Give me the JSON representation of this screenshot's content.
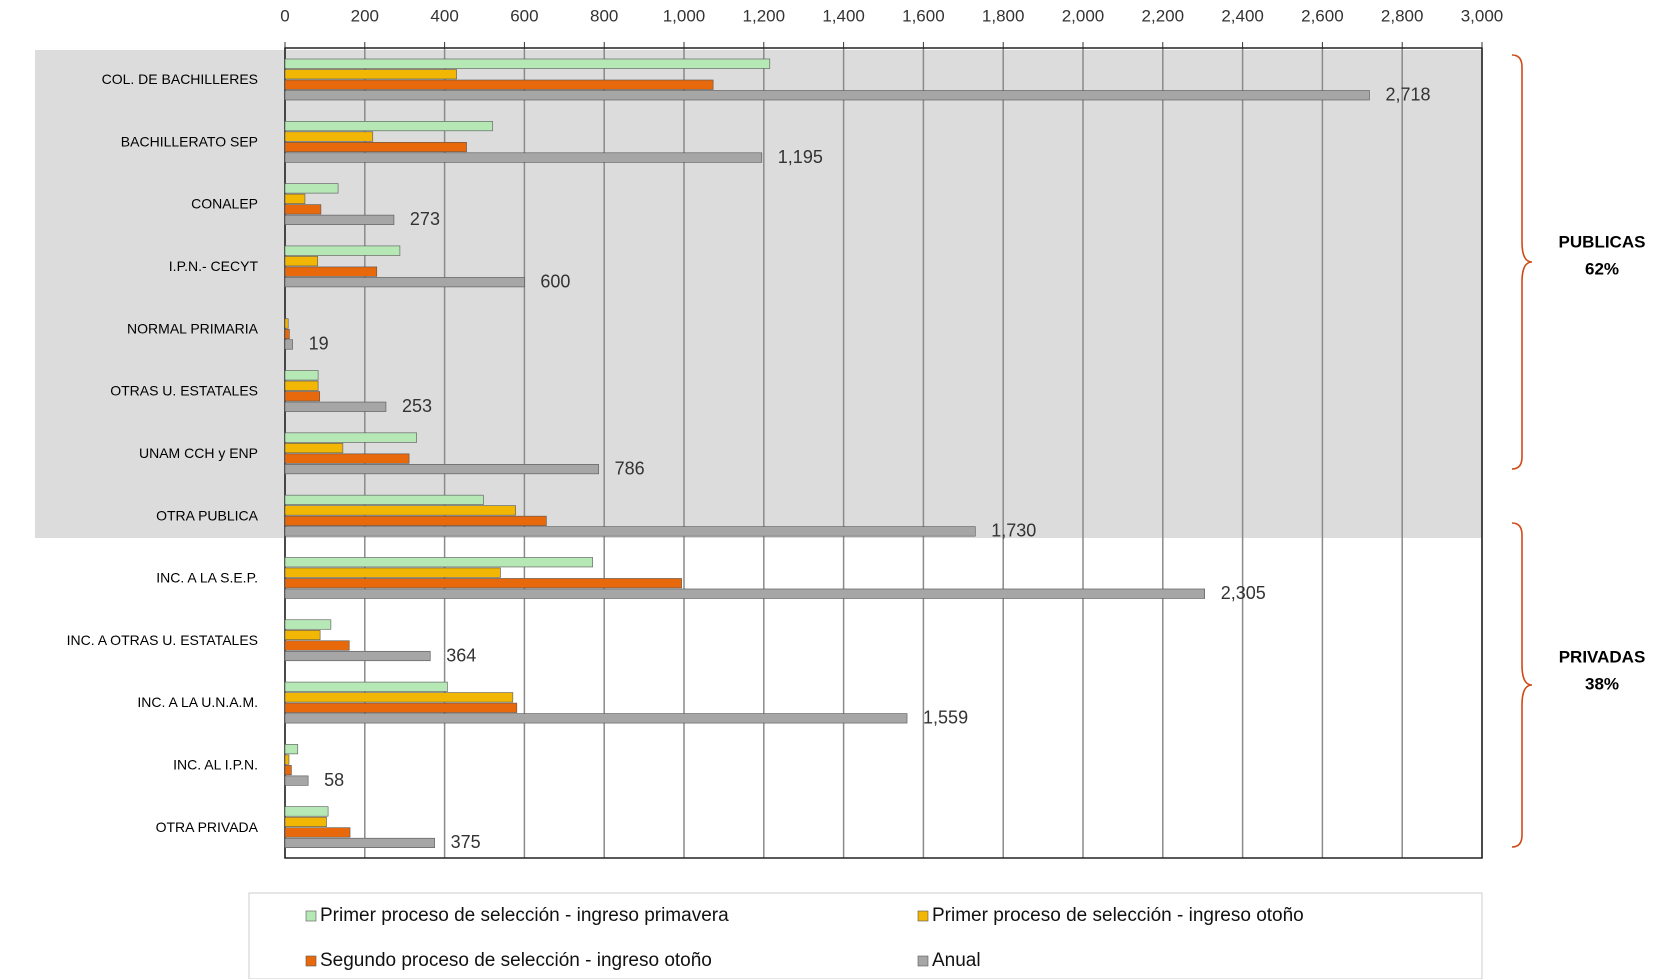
{
  "chart_data": {
    "type": "bar",
    "orientation": "horizontal",
    "categories": [
      "COL. DE BACHILLERES",
      "BACHILLERATO SEP",
      "CONALEP",
      "I.P.N.- CECYT",
      "NORMAL  PRIMARIA",
      "OTRAS  U. ESTATALES",
      "UNAM CCH y ENP",
      "OTRA PUBLICA",
      "INC.  A LA S.E.P.",
      "INC.  A  OTRAS  U.  ESTATALES",
      "INC.  A  LA  U.N.A.M.",
      "INC.  AL  I.P.N.",
      "OTRA PRIVADA"
    ],
    "series": [
      {
        "name": "Primer proceso de selección - ingreso primavera",
        "color": "#b6e8b6",
        "values": [
          1215,
          520,
          133,
          288,
          0,
          83,
          330,
          497,
          771,
          115,
          407,
          32,
          108
        ]
      },
      {
        "name": "Primer proceso de selección - ingreso otoño",
        "color": "#f2b705",
        "values": [
          430,
          220,
          50,
          82,
          8,
          83,
          145,
          578,
          540,
          88,
          571,
          10,
          104
        ]
      },
      {
        "name": "Segundo proceso de selección - ingreso otoño",
        "color": "#e8690c",
        "values": [
          1073,
          455,
          90,
          230,
          11,
          87,
          311,
          655,
          994,
          161,
          581,
          16,
          163
        ]
      },
      {
        "name": "Anual",
        "color": "#a6a6a6",
        "values": [
          2718,
          1195,
          273,
          600,
          19,
          253,
          786,
          1730,
          2305,
          364,
          1559,
          58,
          375
        ],
        "value_labels": [
          "2,718",
          "1,195",
          "273",
          "600",
          "19",
          "253",
          "786",
          "1,730",
          "2,305",
          "364",
          "1,559",
          "58",
          "375"
        ]
      }
    ],
    "xlim": [
      0,
      3000
    ],
    "xticks": [
      0,
      200,
      400,
      600,
      800,
      {
        "value": 1000,
        "label": "1,000"
      },
      {
        "value": 1200,
        "label": "1,200"
      },
      {
        "value": 1400,
        "label": "1,400"
      },
      {
        "value": 1600,
        "label": "1,600"
      },
      {
        "value": 1800,
        "label": "1,800"
      },
      {
        "value": 2000,
        "label": "2,000"
      },
      {
        "value": 2200,
        "label": "2,200"
      },
      {
        "value": 2400,
        "label": "2,400"
      },
      {
        "value": 2600,
        "label": "2,600"
      },
      {
        "value": 2800,
        "label": "2,800"
      },
      {
        "value": 3000,
        "label": "3,000"
      }
    ],
    "grid": true,
    "groups": [
      {
        "name": "PUBLICAS",
        "share": "62%"
      },
      {
        "name": "PRIVADAS",
        "share": "38%"
      }
    ],
    "legend": "bottom"
  }
}
